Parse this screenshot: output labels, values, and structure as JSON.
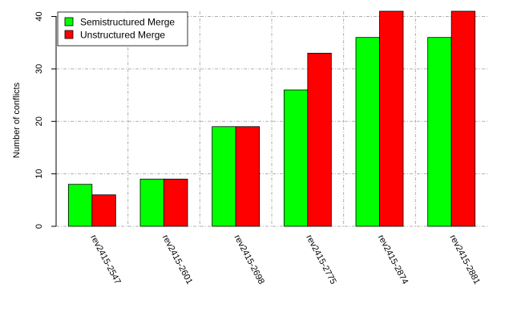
{
  "chart_data": {
    "type": "bar",
    "categories": [
      "rev2415-2547",
      "rev2415-2601",
      "rev2415-2698",
      "rev2415-2775",
      "rev2415-2874",
      "rev2415-2881"
    ],
    "series": [
      {
        "name": "Semistructured Merge",
        "values": [
          8,
          9,
          19,
          26,
          36,
          36
        ],
        "color": "#00ff00"
      },
      {
        "name": "Unstructured Merge",
        "values": [
          6,
          9,
          19,
          33,
          41,
          41
        ],
        "color": "#ff0000"
      }
    ],
    "title": "",
    "xlabel": "",
    "ylabel": "Number of conflicts",
    "ylim": [
      0,
      41
    ],
    "yticks": [
      0,
      10,
      20,
      30,
      40
    ],
    "grid": true,
    "legend_position": "top-left"
  }
}
